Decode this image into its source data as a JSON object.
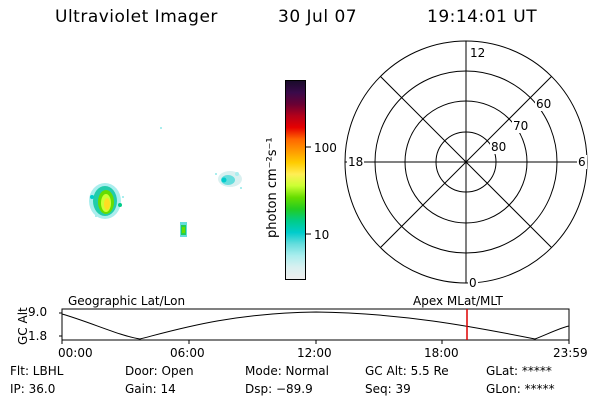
{
  "header": {
    "title": "Ultraviolet Imager",
    "date": "30 Jul 07",
    "time": "19:14:01 UT"
  },
  "colorbar": {
    "unit_label": "photon cm⁻²s⁻¹",
    "ticks": [
      "100",
      "10"
    ],
    "colors": [
      "#1a0b2b",
      "#3a0a4a",
      "#6a0033",
      "#b3001a",
      "#e60000",
      "#ff6600",
      "#ff9900",
      "#ffcc00",
      "#ffee55",
      "#ccff33",
      "#66dd00",
      "#22cc22",
      "#00cc88",
      "#00cccc",
      "#66dddd",
      "#aaeeee",
      "#d9f0f0",
      "#eeeeee"
    ]
  },
  "polar": {
    "mlt_labels": {
      "top": "12",
      "left": "18",
      "right": "6",
      "bottom": "0"
    },
    "lat_labels": [
      "60",
      "70",
      "80"
    ]
  },
  "strip": {
    "ylabel": "GC Alt",
    "yticks": [
      "9.0",
      "1.8"
    ],
    "left_title": "Geographic Lat/Lon",
    "right_title": "Apex MLat/MLT",
    "xticks": [
      "00:00",
      "06:00",
      "12:00",
      "18:00",
      "23:59"
    ],
    "marker_color": "#dd0000"
  },
  "footer": {
    "filter": "Flt: LBHL",
    "door": "Door: Open",
    "mode": "Mode: Normal",
    "gc_alt": "GC Alt: 5.5 Re",
    "glat": "GLat: *****",
    "ip": "IP: 36.0",
    "gain": "Gain: 14",
    "dsp": "Dsp:  −89.9",
    "seq": "Seq: 39",
    "glon": "GLon: *****"
  }
}
